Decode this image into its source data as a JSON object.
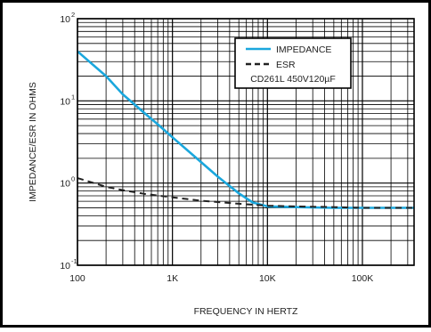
{
  "chart_data": {
    "type": "line",
    "title": "",
    "xlabel": "FREQUENCY IN HERTZ",
    "ylabel": "IMPEDANCE/ESR IN OHMS",
    "x_scale": "log",
    "y_scale": "log",
    "xlim": [
      100,
      350000
    ],
    "ylim": [
      0.1,
      100
    ],
    "grid": true,
    "x_ticks": [
      {
        "value": 100,
        "label": "100"
      },
      {
        "value": 1000,
        "label": "1K"
      },
      {
        "value": 10000,
        "label": "10K"
      },
      {
        "value": 100000,
        "label": "100K"
      }
    ],
    "y_ticks": [
      {
        "value": 100,
        "base": "10",
        "exp": "2"
      },
      {
        "value": 10,
        "base": "10",
        "exp": "1"
      },
      {
        "value": 1,
        "base": "10",
        "exp": "0"
      },
      {
        "value": 0.1,
        "base": "10",
        "exp": "-1"
      }
    ],
    "legend": {
      "position": "top-right",
      "note": "CD261L 450V120µF"
    },
    "series": [
      {
        "name": "IMPEDANCE",
        "color": "#1aa7dd",
        "style": "solid",
        "x": [
          100,
          200,
          300,
          500,
          700,
          1000,
          2000,
          3000,
          5000,
          7000,
          10000,
          20000,
          50000,
          100000,
          350000
        ],
        "y": [
          40,
          20,
          12,
          7.2,
          5.2,
          3.6,
          1.8,
          1.2,
          0.75,
          0.58,
          0.52,
          0.51,
          0.5,
          0.5,
          0.5
        ]
      },
      {
        "name": "ESR",
        "color": "#222222",
        "style": "dashed",
        "x": [
          100,
          150,
          200,
          300,
          500,
          1000,
          2000,
          5000,
          10000,
          20000,
          50000,
          100000,
          350000
        ],
        "y": [
          1.15,
          1.0,
          0.9,
          0.82,
          0.74,
          0.67,
          0.61,
          0.56,
          0.53,
          0.52,
          0.51,
          0.5,
          0.5
        ]
      }
    ]
  }
}
